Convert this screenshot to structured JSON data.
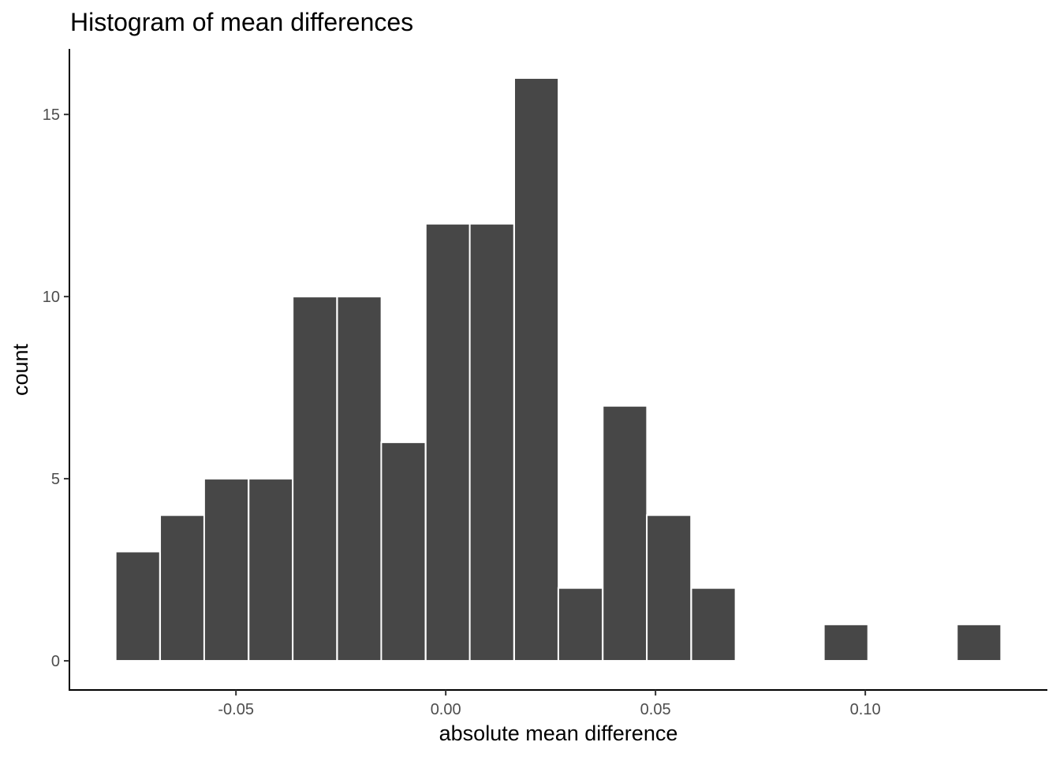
{
  "chart_data": {
    "type": "bar",
    "title": "Histogram of mean differences",
    "xlabel": "absolute mean difference",
    "ylabel": "count",
    "binwidth": 0.01055,
    "bin_centers": [
      -0.0734,
      -0.0628,
      -0.0523,
      -0.0417,
      -0.0312,
      -0.0206,
      -0.0101,
      0.0005,
      0.011,
      0.0216,
      0.0321,
      0.0427,
      0.0532,
      0.0638,
      0.0743,
      0.0849,
      0.0954,
      0.106,
      0.1165,
      0.1271
    ],
    "values": [
      3,
      4,
      5,
      5,
      10,
      10,
      6,
      12,
      12,
      16,
      2,
      7,
      4,
      2,
      0,
      0,
      1,
      0,
      0,
      1
    ],
    "xlim": [
      -0.0897,
      0.1434
    ],
    "ylim": [
      -0.8,
      16.8
    ],
    "x_ticks": [
      -0.05,
      0.0,
      0.05,
      0.1
    ],
    "x_tick_labels": [
      "-0.05",
      "0.00",
      "0.05",
      "0.10"
    ],
    "y_ticks": [
      0,
      5,
      10,
      15
    ],
    "y_tick_labels": [
      "0",
      "5",
      "10",
      "15"
    ],
    "grid": false,
    "bar_color": "#474747",
    "bar_outline": "#ffffff"
  }
}
